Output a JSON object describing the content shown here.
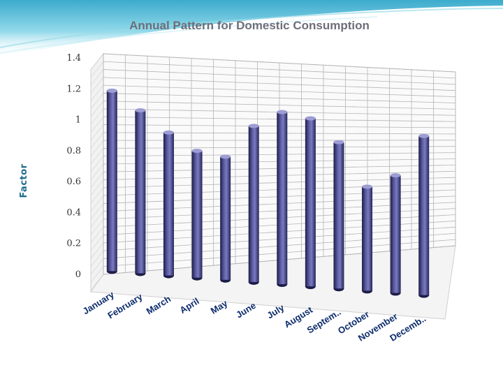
{
  "chart_data": {
    "type": "bar",
    "title": "Annual Pattern for Domestic Consumption",
    "xlabel": "",
    "ylabel": "Factor",
    "categories": [
      "January",
      "February",
      "March",
      "April",
      "May",
      "June",
      "July",
      "August",
      "Septem..",
      "October",
      "November",
      "Decemb.."
    ],
    "series": [
      {
        "name": "Factor",
        "values": [
          1.21,
          1.09,
          0.95,
          0.83,
          0.79,
          1.0,
          1.1,
          1.06,
          0.89,
          0.56,
          0.64,
          0.94
        ]
      }
    ],
    "ylim": [
      0,
      1.4
    ],
    "yticks": [
      "0",
      "0.2",
      "0.4",
      "0.6",
      "0.8",
      "1",
      "1.2",
      "1.4"
    ],
    "grid": true,
    "style": "3d-cylinder"
  },
  "colors": {
    "bar": "#4a4a8a",
    "bar_dark": "#1c1c48",
    "bar_light": "#9d9dd4",
    "grid": "#b5b5b5",
    "accent": "#7fcfe0"
  }
}
